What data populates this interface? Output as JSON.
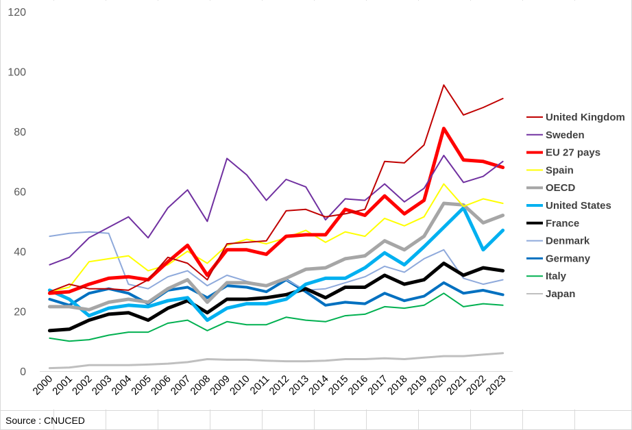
{
  "source": "Source : CNUCED",
  "chart_data": {
    "type": "line",
    "x": [
      "2000",
      "2001",
      "2002",
      "2003",
      "2004",
      "2005",
      "2006",
      "2007",
      "2008",
      "2009",
      "2010",
      "2011",
      "2012",
      "2013",
      "2014",
      "2015",
      "2016",
      "2017",
      "2018",
      "2019",
      "2020",
      "2021",
      "2022",
      "2023"
    ],
    "ylim": [
      0,
      120
    ],
    "yticks": [
      0,
      20,
      40,
      60,
      80,
      100,
      120
    ],
    "grid": false,
    "legend_position": "right",
    "series": [
      {
        "name": "United Kingdom",
        "color": "#C00000",
        "width": 2,
        "values": [
          26.5,
          29,
          27.5,
          27.5,
          27,
          30.5,
          38,
          36,
          30.5,
          42.5,
          43,
          43.5,
          53.5,
          54,
          51.5,
          52.5,
          54,
          70,
          69.5,
          75.5,
          95.5,
          85.5,
          88,
          91
        ]
      },
      {
        "name": "Sweden",
        "color": "#7030A0",
        "width": 2,
        "values": [
          35.5,
          38,
          44.5,
          48,
          51.5,
          44.5,
          54.5,
          60.5,
          50,
          71,
          65.5,
          57,
          64,
          61.5,
          50.5,
          57.5,
          57,
          62.5,
          56.5,
          61,
          72,
          63,
          65,
          70
        ]
      },
      {
        "name": "EU 27 pays",
        "color": "#FF0000",
        "width": 5,
        "values": [
          26,
          26.5,
          29,
          31,
          31.5,
          30.5,
          36.5,
          42,
          32,
          40.5,
          40.5,
          39,
          45,
          45.5,
          45.5,
          54,
          52,
          58.5,
          52.5,
          57,
          81,
          70.5,
          70,
          68
        ]
      },
      {
        "name": "Spain",
        "color": "#FFFF00",
        "width": 2,
        "values": [
          26.5,
          28,
          36.5,
          37.5,
          38.5,
          33.5,
          35.5,
          40,
          36,
          42,
          44,
          42.5,
          44.5,
          47,
          43,
          46.5,
          45,
          51,
          48.5,
          51.5,
          62.5,
          55,
          57.5,
          56
        ]
      },
      {
        "name": "OECD",
        "color": "#A6A6A6",
        "width": 5,
        "values": [
          21.5,
          21.5,
          20.5,
          23,
          24,
          23,
          27.5,
          30.5,
          23,
          29.5,
          29.5,
          28.5,
          31,
          34,
          34.5,
          37.5,
          38.5,
          43.5,
          40.5,
          45,
          56,
          55.5,
          49.5,
          52
        ]
      },
      {
        "name": "United States",
        "color": "#00B0F0",
        "width": 5,
        "values": [
          27,
          24,
          18.5,
          21,
          22,
          21.5,
          23.5,
          24.5,
          17,
          21,
          22.5,
          22.5,
          24,
          29,
          31,
          31,
          34.5,
          39.5,
          35.5,
          41.5,
          48,
          54.5,
          40.5,
          47
        ]
      },
      {
        "name": "France",
        "color": "#000000",
        "width": 5,
        "values": [
          13.5,
          14,
          17,
          19,
          19.5,
          17,
          21,
          23.5,
          19.5,
          24,
          24,
          24.5,
          25.5,
          27.5,
          24.5,
          28,
          28,
          32,
          29,
          30.5,
          36,
          32,
          34.5,
          33.5
        ]
      },
      {
        "name": "Denmark",
        "color": "#8EA9DB",
        "width": 2,
        "values": [
          45,
          46,
          46.5,
          46,
          29,
          27.5,
          31.5,
          33.5,
          28.5,
          32,
          30,
          28.5,
          30.5,
          27,
          27.5,
          29.5,
          31.5,
          35,
          33,
          37.5,
          40.5,
          31,
          29,
          30.5
        ]
      },
      {
        "name": "Germany",
        "color": "#0070C0",
        "width": 4,
        "values": [
          24,
          22,
          26,
          27.5,
          26,
          22.5,
          27,
          28,
          24.5,
          28.5,
          28,
          26.5,
          30.5,
          26.5,
          22,
          23,
          22.5,
          26,
          23.5,
          25,
          29.5,
          26,
          27,
          25.5
        ]
      },
      {
        "name": "Italy",
        "color": "#00B050",
        "width": 2,
        "values": [
          11,
          10,
          10.5,
          12,
          13,
          13,
          16,
          17,
          13.5,
          16.5,
          15.5,
          15.5,
          18,
          17,
          16.5,
          18.5,
          19,
          21.5,
          21,
          22,
          26,
          21.5,
          22.5,
          22
        ]
      },
      {
        "name": "Japan",
        "color": "#BFBFBF",
        "width": 3,
        "values": [
          1,
          1.2,
          2,
          2,
          2,
          2.2,
          2.5,
          3,
          4,
          3.8,
          3.8,
          3.5,
          3.3,
          3.3,
          3.5,
          4,
          4,
          4.3,
          4,
          4.5,
          5,
          5,
          5.5,
          6
        ]
      }
    ]
  }
}
